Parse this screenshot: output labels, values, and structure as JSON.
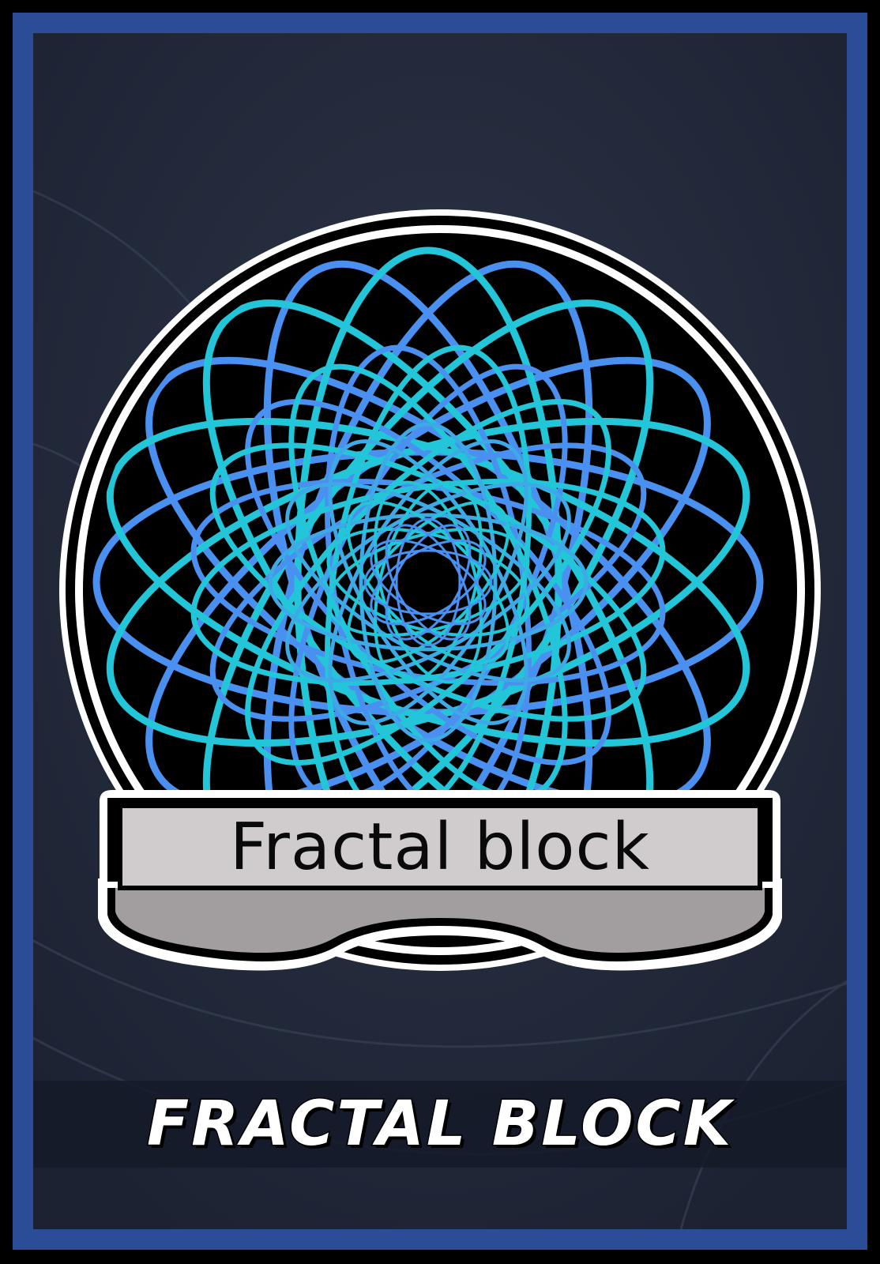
{
  "card": {
    "emblem_label": "Fractal block",
    "title": "FRACTAL BLOCK"
  },
  "colors": {
    "frame_border": "#2b4c96",
    "background": "#222a3a",
    "pattern_cyan": "#22c6d8",
    "pattern_blue": "#4a90f0",
    "banner_fill": "#d0cbcc",
    "banner_shadow": "#a29d9e"
  },
  "icons": {
    "emblem": "spirograph-icon"
  }
}
